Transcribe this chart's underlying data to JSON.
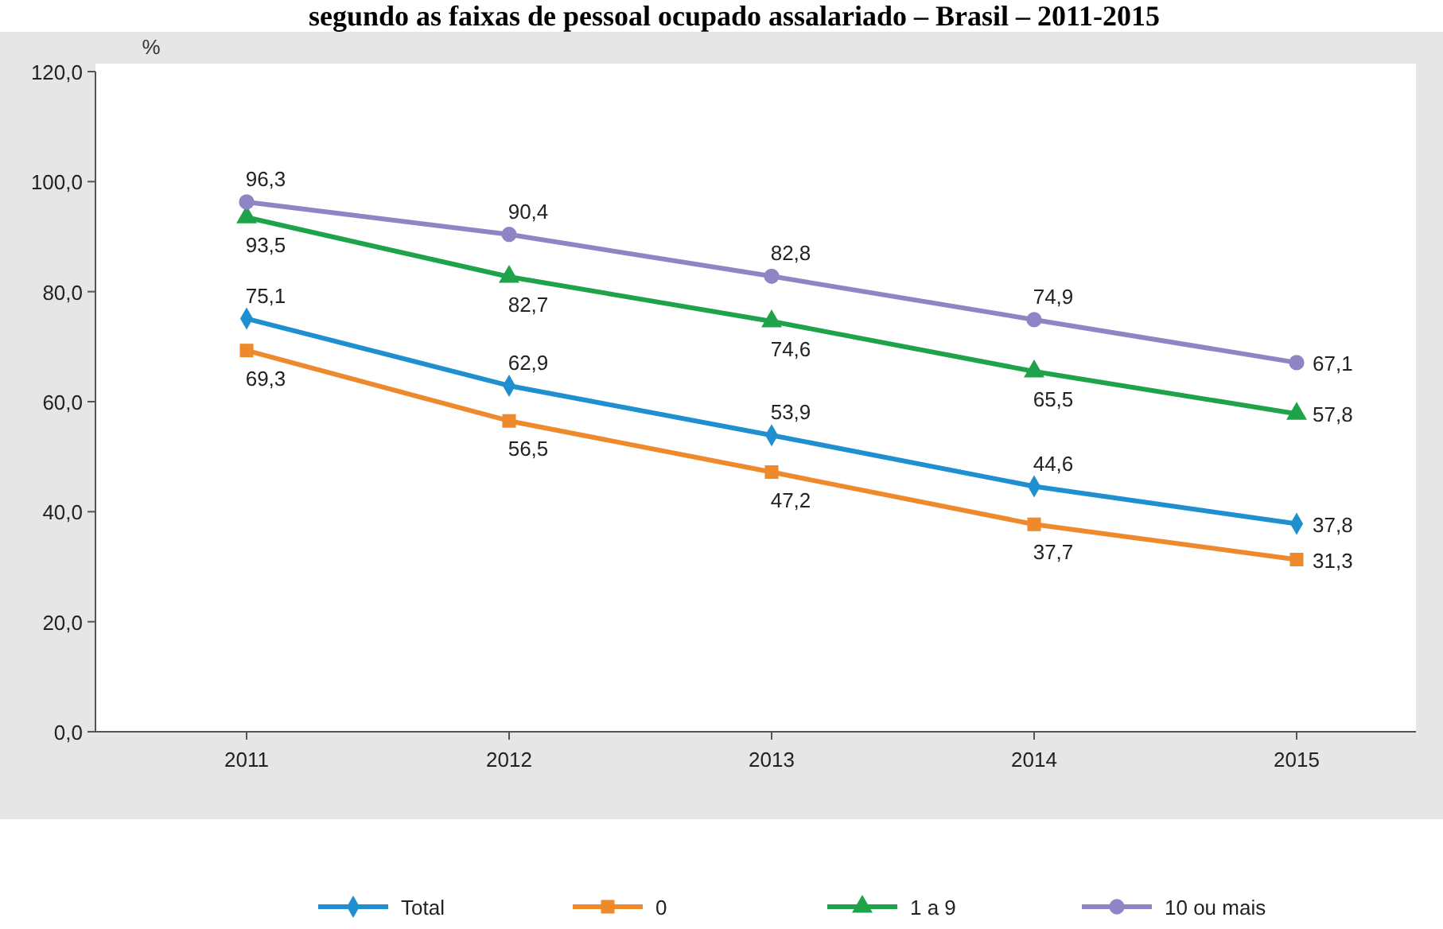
{
  "chart_data": {
    "type": "line",
    "title": "segundo as faixas de pessoal ocupado assalariado – Brasil – 2011-2015",
    "ylabel": "%",
    "categories": [
      "2011",
      "2012",
      "2013",
      "2014",
      "2015"
    ],
    "series": [
      {
        "name": "Total",
        "color": "#1f8fcf",
        "marker": "diamond",
        "values": [
          75.1,
          62.9,
          53.9,
          44.6,
          37.8
        ],
        "value_labels": [
          "75,1",
          "62,9",
          "53,9",
          "44,6",
          "37,8"
        ]
      },
      {
        "name": "0",
        "color": "#ef8a2c",
        "marker": "square",
        "values": [
          69.3,
          56.5,
          47.2,
          37.7,
          31.3
        ],
        "value_labels": [
          "69,3",
          "56,5",
          "47,2",
          "37,7",
          "31,3"
        ]
      },
      {
        "name": "1 a 9",
        "color": "#1fa34a",
        "marker": "triangle",
        "values": [
          93.5,
          82.7,
          74.6,
          65.5,
          57.8
        ],
        "value_labels": [
          "93,5",
          "82,7",
          "74,6",
          "65,5",
          "57,8"
        ]
      },
      {
        "name": "10 ou mais",
        "color": "#8e86c4",
        "marker": "circle",
        "values": [
          96.3,
          90.4,
          82.8,
          74.9,
          67.1
        ],
        "value_labels": [
          "96,3",
          "90,4",
          "82,8",
          "74,9",
          "67,1"
        ]
      }
    ],
    "ylim": [
      0,
      120
    ],
    "yticks": [
      {
        "value": 0,
        "label": "0,0"
      },
      {
        "value": 20,
        "label": "20,0"
      },
      {
        "value": 40,
        "label": "40,0"
      },
      {
        "value": 60,
        "label": "60,0"
      },
      {
        "value": 80,
        "label": "80,0"
      },
      {
        "value": 100,
        "label": "100,0"
      },
      {
        "value": 120,
        "label": "120,0"
      }
    ],
    "legend": "bottom"
  }
}
